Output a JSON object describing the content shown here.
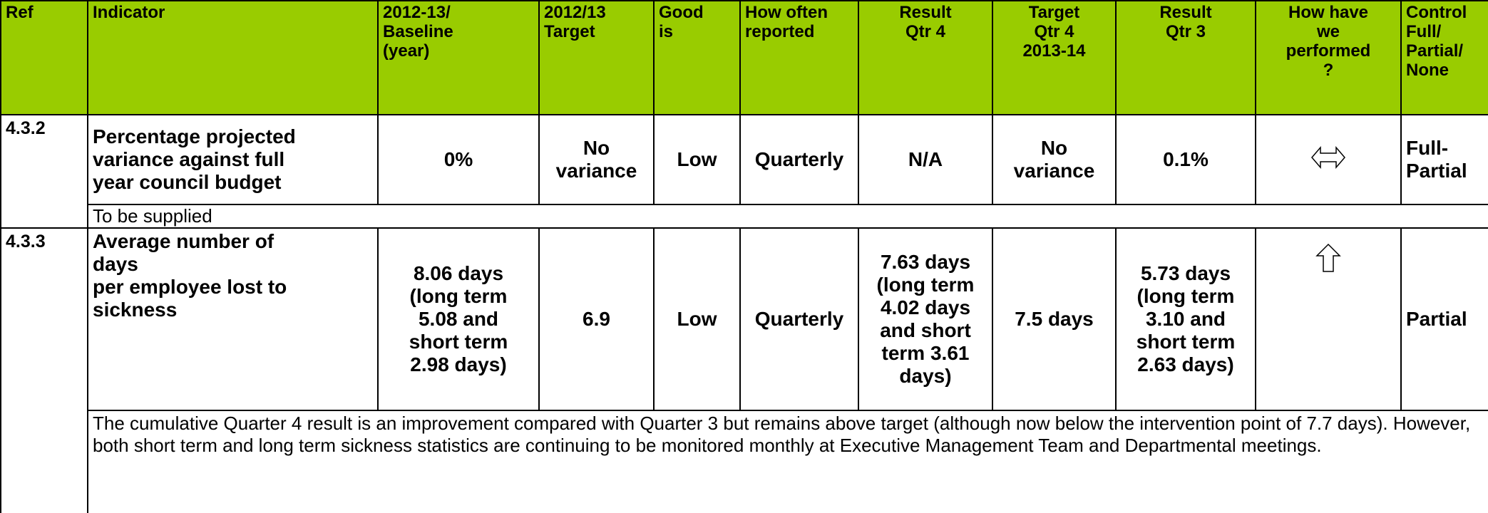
{
  "table": {
    "headers": [
      "Ref",
      "Indicator",
      "2012-13/\nBaseline\n(year)",
      "2012/13\nTarget",
      "Good\nis",
      "How often\nreported",
      "Result\nQtr 4",
      "Target\nQtr 4\n2013-14",
      "Result\nQtr 3",
      "How have\nwe\nperformed\n?",
      "Control\nFull/\nPartial/\nNone"
    ],
    "rows": [
      {
        "ref": "4.3.2",
        "indicator": "Percentage projected\nvariance against full\nyear council budget",
        "baseline": "0%",
        "target": "No\nvariance",
        "good_is": "Low",
        "frequency": "Quarterly",
        "result_q4": "N/A",
        "target_q4": "No\nvariance",
        "result_q3": "0.1%",
        "control": "Full-\nPartial",
        "comment": "To be supplied"
      },
      {
        "ref": "4.3.3",
        "indicator": "Average number of\ndays\n per employee lost to\n sickness",
        "baseline": "8.06 days\n(long term\n5.08 and\nshort term\n2.98 days)",
        "target": "6.9",
        "good_is": "Low",
        "frequency": "Quarterly",
        "result_q4": "7.63 days\n(long term\n4.02 days\nand short\nterm 3.61\ndays)",
        "target_q4": "7.5 days",
        "result_q3": "5.73 days\n(long term\n3.10 and\nshort term\n2.63 days)",
        "control": "Partial",
        "comment": "The cumulative Quarter 4 result is an improvement compared with Quarter 3 but remains above target (although now below the intervention point of 7.7 days).  However, both short term and long term sickness statistics are continuing to be monitored monthly at Executive Management Team and Departmental meetings."
      }
    ]
  }
}
